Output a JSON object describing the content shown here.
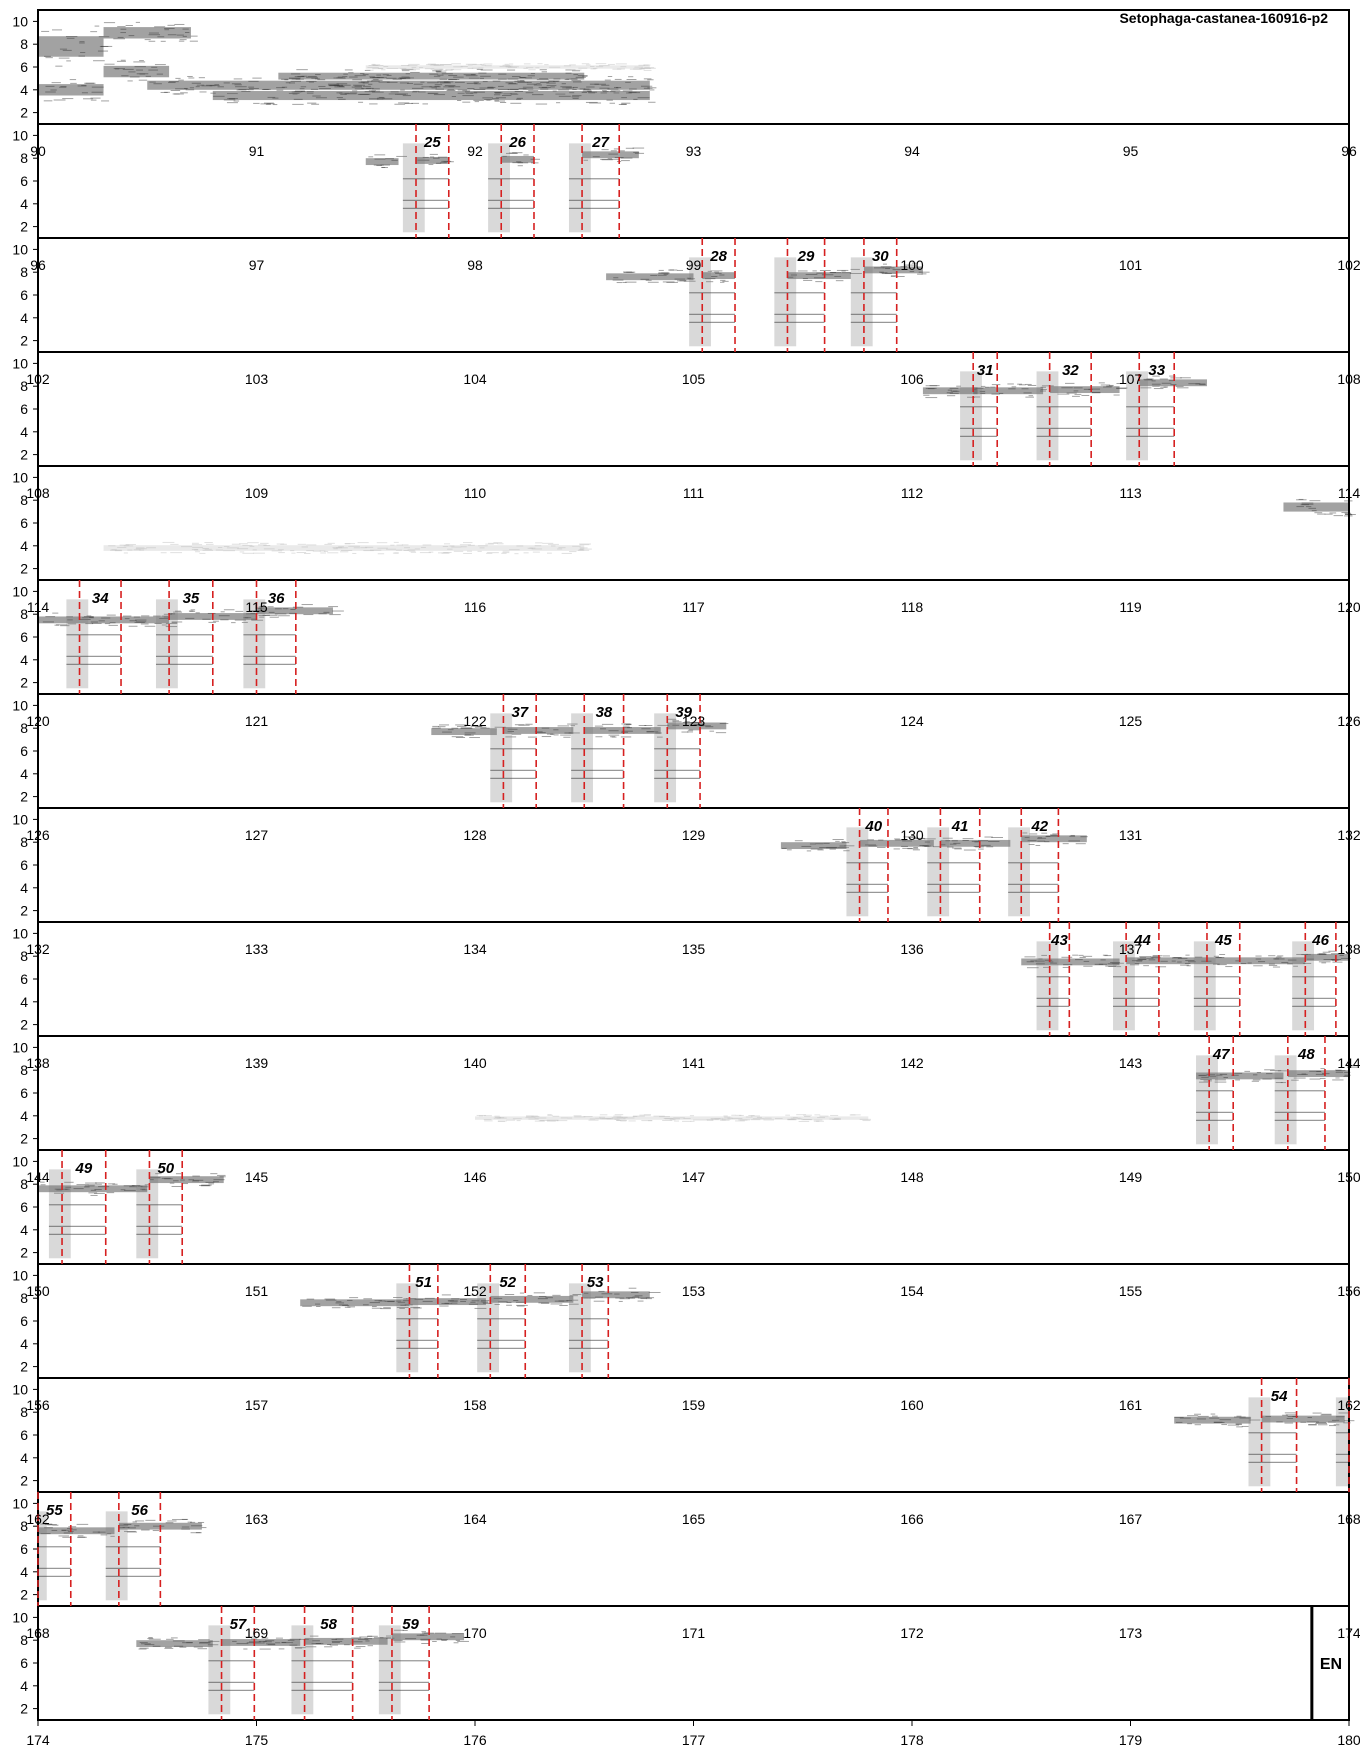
{
  "title": "Setophaga-castanea-160916-p2",
  "end_label": "EN",
  "chart_data": {
    "type": "spectrogram",
    "title": "Setophaga-castanea-160916-p2",
    "y_ticks": [
      2,
      4,
      6,
      8,
      10
    ],
    "ylim": [
      1,
      11
    ],
    "seconds_per_row": 6,
    "grid": false,
    "marker_color": "#d62020",
    "row_starts": [
      84,
      90,
      96,
      102,
      108,
      114,
      120,
      126,
      132,
      138,
      144,
      150,
      156,
      162,
      168
    ],
    "row_time_labels": [
      [],
      [
        "90",
        "91",
        "92",
        "93",
        "94",
        "95",
        "96"
      ],
      [
        "96",
        "97",
        "98",
        "99",
        "100",
        "101",
        "102"
      ],
      [
        "102",
        "103",
        "104",
        "105",
        "106",
        "107",
        "108"
      ],
      [
        "108",
        "109",
        "110",
        "111",
        "112",
        "113",
        "114"
      ],
      [
        "114",
        "115",
        "116",
        "117",
        "118",
        "119",
        "120"
      ],
      [
        "120",
        "121",
        "122",
        "123",
        "124",
        "125",
        "126"
      ],
      [
        "126",
        "127",
        "128",
        "129",
        "130",
        "131",
        "132"
      ],
      [
        "132",
        "133",
        "134",
        "135",
        "136",
        "137",
        "138"
      ],
      [
        "138",
        "139",
        "140",
        "141",
        "142",
        "143",
        "144"
      ],
      [
        "144",
        "145",
        "146",
        "147",
        "148",
        "149",
        "150"
      ],
      [
        "150",
        "151",
        "152",
        "153",
        "154",
        "155",
        "156"
      ],
      [
        "156",
        "157",
        "158",
        "159",
        "160",
        "161",
        "162"
      ],
      [
        "162",
        "163",
        "164",
        "165",
        "166",
        "167",
        "168"
      ],
      [
        "168",
        "169",
        "170",
        "171",
        "172",
        "173",
        "174"
      ]
    ],
    "bottom_axis_labels": [
      "174",
      "175",
      "176",
      "177",
      "178",
      "179",
      "180"
    ],
    "end_time": 173.83,
    "selections": [
      {
        "label": "25",
        "start": 91.73,
        "end": 91.88
      },
      {
        "label": "26",
        "start": 92.12,
        "end": 92.27
      },
      {
        "label": "27",
        "start": 92.49,
        "end": 92.66
      },
      {
        "label": "28",
        "start": 99.04,
        "end": 99.19
      },
      {
        "label": "29",
        "start": 99.43,
        "end": 99.6
      },
      {
        "label": "30",
        "start": 99.78,
        "end": 99.93
      },
      {
        "label": "31",
        "start": 106.28,
        "end": 106.39
      },
      {
        "label": "32",
        "start": 106.63,
        "end": 106.82
      },
      {
        "label": "33",
        "start": 107.04,
        "end": 107.2
      },
      {
        "label": "34",
        "start": 114.19,
        "end": 114.38
      },
      {
        "label": "35",
        "start": 114.6,
        "end": 114.8
      },
      {
        "label": "36",
        "start": 115.0,
        "end": 115.18
      },
      {
        "label": "37",
        "start": 122.13,
        "end": 122.28
      },
      {
        "label": "38",
        "start": 122.5,
        "end": 122.68
      },
      {
        "label": "39",
        "start": 122.88,
        "end": 123.03
      },
      {
        "label": "40",
        "start": 129.76,
        "end": 129.89
      },
      {
        "label": "41",
        "start": 130.13,
        "end": 130.31
      },
      {
        "label": "42",
        "start": 130.5,
        "end": 130.67
      },
      {
        "label": "43",
        "start": 136.63,
        "end": 136.72
      },
      {
        "label": "44",
        "start": 136.98,
        "end": 137.13
      },
      {
        "label": "45",
        "start": 137.35,
        "end": 137.5
      },
      {
        "label": "46",
        "start": 137.8,
        "end": 137.94
      },
      {
        "label": "47",
        "start": 143.36,
        "end": 143.47
      },
      {
        "label": "48",
        "start": 143.72,
        "end": 143.89
      },
      {
        "label": "49",
        "start": 144.11,
        "end": 144.31
      },
      {
        "label": "50",
        "start": 144.51,
        "end": 144.66
      },
      {
        "label": "51",
        "start": 151.7,
        "end": 151.83
      },
      {
        "label": "52",
        "start": 152.07,
        "end": 152.23
      },
      {
        "label": "53",
        "start": 152.49,
        "end": 152.61
      },
      {
        "label": "54",
        "start": 161.6,
        "end": 161.76
      },
      {
        "label": "55",
        "start": 162.0,
        "end": 162.15
      },
      {
        "label": "56",
        "start": 162.37,
        "end": 162.56
      },
      {
        "label": "57",
        "start": 168.84,
        "end": 168.99
      },
      {
        "label": "58",
        "start": 169.22,
        "end": 169.44
      },
      {
        "label": "59",
        "start": 169.62,
        "end": 169.79
      }
    ],
    "tones": [
      {
        "t0": 84.0,
        "t1": 84.3,
        "f": 7.8,
        "w": 0.9
      },
      {
        "t0": 84.0,
        "t1": 84.3,
        "f": 4.0,
        "w": 0.5
      },
      {
        "t0": 84.3,
        "t1": 84.7,
        "f": 9.0,
        "w": 0.5
      },
      {
        "t0": 84.3,
        "t1": 84.6,
        "f": 5.6,
        "w": 0.5
      },
      {
        "t0": 84.5,
        "t1": 86.8,
        "f": 4.4,
        "w": 0.4
      },
      {
        "t0": 84.8,
        "t1": 86.8,
        "f": 3.5,
        "w": 0.4
      },
      {
        "t0": 85.1,
        "t1": 86.5,
        "f": 5.2,
        "w": 0.3
      },
      {
        "t0": 91.5,
        "t1": 91.65,
        "f": 7.7,
        "w": 0.3
      },
      {
        "t0": 91.73,
        "t1": 91.88,
        "f": 7.8,
        "w": 0.3
      },
      {
        "t0": 92.12,
        "t1": 92.27,
        "f": 7.9,
        "w": 0.3
      },
      {
        "t0": 92.49,
        "t1": 92.75,
        "f": 8.3,
        "w": 0.3
      },
      {
        "t0": 98.6,
        "t1": 99.0,
        "f": 7.6,
        "w": 0.3
      },
      {
        "t0": 99.04,
        "t1": 99.19,
        "f": 7.7,
        "w": 0.3
      },
      {
        "t0": 99.43,
        "t1": 99.72,
        "f": 7.7,
        "w": 0.3
      },
      {
        "t0": 99.78,
        "t1": 100.05,
        "f": 8.2,
        "w": 0.3
      },
      {
        "t0": 106.05,
        "t1": 106.3,
        "f": 7.6,
        "w": 0.3
      },
      {
        "t0": 106.28,
        "t1": 106.6,
        "f": 7.6,
        "w": 0.3
      },
      {
        "t0": 106.63,
        "t1": 106.95,
        "f": 7.7,
        "w": 0.3
      },
      {
        "t0": 107.04,
        "t1": 107.35,
        "f": 8.3,
        "w": 0.3
      },
      {
        "t0": 113.7,
        "t1": 114.0,
        "f": 7.4,
        "w": 0.4
      },
      {
        "t0": 114.0,
        "t1": 114.6,
        "f": 7.5,
        "w": 0.3
      },
      {
        "t0": 114.6,
        "t1": 115.0,
        "f": 7.8,
        "w": 0.3
      },
      {
        "t0": 115.0,
        "t1": 115.35,
        "f": 8.3,
        "w": 0.3
      },
      {
        "t0": 121.8,
        "t1": 122.1,
        "f": 7.7,
        "w": 0.3
      },
      {
        "t0": 122.13,
        "t1": 122.45,
        "f": 7.8,
        "w": 0.3
      },
      {
        "t0": 122.5,
        "t1": 122.85,
        "f": 7.8,
        "w": 0.3
      },
      {
        "t0": 122.88,
        "t1": 123.15,
        "f": 8.2,
        "w": 0.3
      },
      {
        "t0": 129.4,
        "t1": 129.7,
        "f": 7.7,
        "w": 0.3
      },
      {
        "t0": 129.76,
        "t1": 130.1,
        "f": 7.9,
        "w": 0.3
      },
      {
        "t0": 130.13,
        "t1": 130.45,
        "f": 7.9,
        "w": 0.3
      },
      {
        "t0": 130.5,
        "t1": 130.8,
        "f": 8.3,
        "w": 0.3
      },
      {
        "t0": 136.5,
        "t1": 136.95,
        "f": 7.5,
        "w": 0.3
      },
      {
        "t0": 136.98,
        "t1": 137.8,
        "f": 7.6,
        "w": 0.3
      },
      {
        "t0": 137.8,
        "t1": 138.0,
        "f": 7.9,
        "w": 0.3
      },
      {
        "t0": 143.3,
        "t1": 143.7,
        "f": 7.5,
        "w": 0.3
      },
      {
        "t0": 143.72,
        "t1": 144.0,
        "f": 7.7,
        "w": 0.3
      },
      {
        "t0": 144.0,
        "t1": 144.5,
        "f": 7.6,
        "w": 0.3
      },
      {
        "t0": 144.51,
        "t1": 144.85,
        "f": 8.4,
        "w": 0.3
      },
      {
        "t0": 151.2,
        "t1": 151.7,
        "f": 7.6,
        "w": 0.3
      },
      {
        "t0": 151.7,
        "t1": 152.05,
        "f": 7.7,
        "w": 0.3
      },
      {
        "t0": 152.07,
        "t1": 152.45,
        "f": 7.9,
        "w": 0.3
      },
      {
        "t0": 152.49,
        "t1": 152.8,
        "f": 8.3,
        "w": 0.3
      },
      {
        "t0": 161.2,
        "t1": 161.55,
        "f": 7.3,
        "w": 0.3
      },
      {
        "t0": 161.6,
        "t1": 161.98,
        "f": 7.4,
        "w": 0.3
      },
      {
        "t0": 162.0,
        "t1": 162.35,
        "f": 7.6,
        "w": 0.3
      },
      {
        "t0": 162.37,
        "t1": 162.75,
        "f": 8.0,
        "w": 0.3
      },
      {
        "t0": 168.45,
        "t1": 168.8,
        "f": 7.7,
        "w": 0.3
      },
      {
        "t0": 168.84,
        "t1": 169.2,
        "f": 7.8,
        "w": 0.3
      },
      {
        "t0": 169.22,
        "t1": 169.6,
        "f": 7.9,
        "w": 0.3
      },
      {
        "t0": 169.62,
        "t1": 169.95,
        "f": 8.3,
        "w": 0.3
      },
      {
        "t0": 85.5,
        "t1": 86.8,
        "f": 6.0,
        "w": 0.15
      },
      {
        "t0": 108.3,
        "t1": 110.5,
        "f": 3.8,
        "w": 0.25
      },
      {
        "t0": 140.0,
        "t1": 141.8,
        "f": 3.8,
        "w": 0.15
      }
    ]
  }
}
